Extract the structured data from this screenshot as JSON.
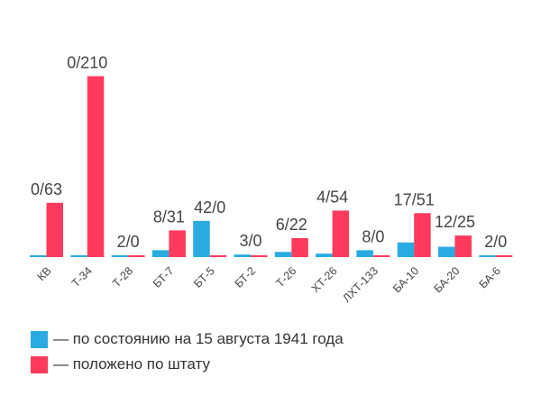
{
  "chart_data": {
    "type": "bar",
    "categories": [
      "КВ",
      "Т-34",
      "Т-28",
      "БТ-7",
      "БТ-5",
      "БТ-2",
      "Т-26",
      "ХТ-26",
      "ЛХТ-133",
      "БА-10",
      "БА-20",
      "БА-6"
    ],
    "series": [
      {
        "name": "— по состоянию на 15 августа 1941 года",
        "color": "#29abe2",
        "values": [
          0,
          0,
          2,
          8,
          42,
          3,
          6,
          4,
          8,
          17,
          12,
          2
        ]
      },
      {
        "name": "— положено по штату",
        "color": "#ff3a5c",
        "values": [
          63,
          210,
          0,
          31,
          0,
          0,
          22,
          54,
          0,
          51,
          25,
          0
        ]
      }
    ],
    "data_labels": [
      "0/63",
      "0/210",
      "2/0",
      "8/31",
      "42/0",
      "3/0",
      "6/22",
      "4/54",
      "8/0",
      "17/51",
      "12/25",
      "2/0"
    ],
    "legend_position": "bottom-left",
    "grid": false
  }
}
